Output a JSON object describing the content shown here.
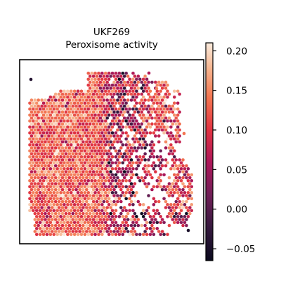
{
  "chart_data": {
    "type": "scatter",
    "subtype": "spatial-hexbin",
    "title_line1": "UKF269",
    "title_line2": "Peroxisome activity",
    "xlabel": "",
    "ylabel": "",
    "axis_ticks_visible": false,
    "grid": false,
    "colormap": "rocket",
    "colorbar": {
      "vmin": -0.065,
      "vmax": 0.21,
      "ticks": [
        0.2,
        0.15,
        0.1,
        0.05,
        0.0,
        -0.05
      ],
      "tick_labels": [
        "0.20",
        "0.15",
        "0.10",
        "0.05",
        "0.00",
        "−0.05"
      ],
      "placement": "right"
    },
    "regions": [
      {
        "region": "left tissue area",
        "typical_value": 0.13,
        "spread": 0.035
      },
      {
        "region": "right tissue area",
        "typical_value": 0.07,
        "spread": 0.06
      },
      {
        "region": "upper-right lobe",
        "typical_value": 0.12,
        "spread": 0.045
      }
    ]
  }
}
